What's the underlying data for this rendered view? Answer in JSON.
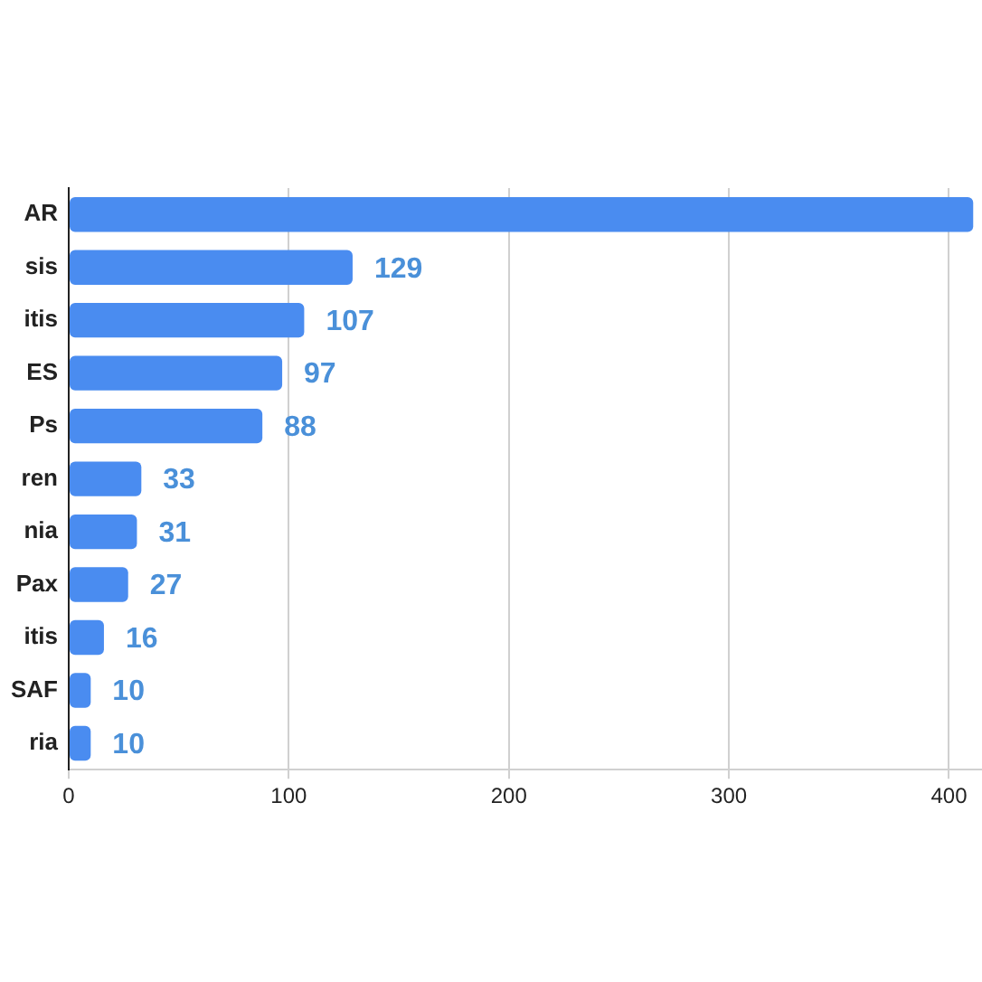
{
  "chart_data": {
    "type": "bar",
    "orientation": "horizontal",
    "categories": [
      "AR",
      "sis",
      "itis",
      "ES",
      "Ps",
      "ren",
      "nia",
      "Pax",
      "itis",
      "SAF",
      "ria"
    ],
    "values": [
      411,
      129,
      107,
      97,
      88,
      33,
      31,
      27,
      16,
      10,
      10
    ],
    "value_labels": [
      null,
      "129",
      "107",
      "97",
      "88",
      "33",
      "31",
      "27",
      "16",
      "10",
      "10"
    ],
    "color": "#4a8cf0",
    "xlim": [
      0,
      415
    ],
    "xticks": [
      0,
      100,
      200,
      300,
      400
    ],
    "grid": "x",
    "legend": false
  }
}
